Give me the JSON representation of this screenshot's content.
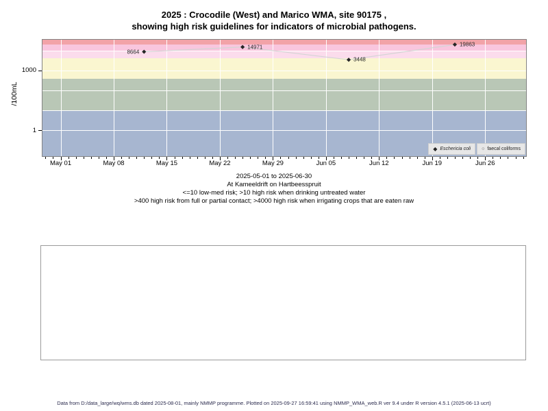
{
  "title": {
    "line1": "2025 : Crocodile (West) and Marico WMA, site 90175 ,",
    "line2": "showing high risk guidelines for indicators of microbial pathogens."
  },
  "y_axis": {
    "label": "/100mL",
    "tick_labels": [
      {
        "value": 1000,
        "label": "1000"
      },
      {
        "value": 1,
        "label": "1"
      }
    ]
  },
  "x_axis": {
    "tick_labels": [
      {
        "date": "2025-05-01",
        "label": "May 01"
      },
      {
        "date": "2025-05-08",
        "label": "May 08"
      },
      {
        "date": "2025-05-15",
        "label": "May 15"
      },
      {
        "date": "2025-05-22",
        "label": "May 22"
      },
      {
        "date": "2025-05-29",
        "label": "May 29"
      },
      {
        "date": "2025-06-05",
        "label": "Jun 05"
      },
      {
        "date": "2025-06-12",
        "label": "Jun 12"
      },
      {
        "date": "2025-06-19",
        "label": "Jun 19"
      },
      {
        "date": "2025-06-26",
        "label": "Jun 26"
      }
    ]
  },
  "chart_data": {
    "type": "line",
    "y_scale": "log10",
    "x_range": [
      "2025-05-01",
      "2025-06-30"
    ],
    "grid": true,
    "grid_color": "#ffffff",
    "y_gridlines": [
      1,
      10,
      100,
      1000,
      10000
    ],
    "series": [
      {
        "name": "Eschericia coli",
        "marker": "filled-diamond",
        "line_color": "#d4d4d4",
        "marker_color": "#262626",
        "points": [
          {
            "date": "2025-05-12",
            "value": 8664,
            "label": "8664",
            "label_side": "left"
          },
          {
            "date": "2025-05-25",
            "value": 14971,
            "label": "14971",
            "label_side": "right"
          },
          {
            "date": "2025-06-08",
            "value": 3448,
            "label": "3448",
            "label_side": "right"
          },
          {
            "date": "2025-06-22",
            "value": 19863,
            "label": "19863",
            "label_side": "right"
          }
        ]
      },
      {
        "name": "faecal coliforms",
        "marker": "open-circle",
        "line_color": "#d4d4d4",
        "marker_color": "#444444",
        "points": []
      }
    ],
    "guideline_bands": [
      {
        "from": null,
        "to": 10,
        "color": "#a7b6d0"
      },
      {
        "from": 10,
        "to": 400,
        "color": "#b9c7b6"
      },
      {
        "from": 400,
        "to": 4000,
        "color": "#faf6d0"
      },
      {
        "from": 4000,
        "to": 10000,
        "color": "#fbdcec"
      },
      {
        "from": 10000,
        "to": 20000,
        "color": "#f9c6de"
      },
      {
        "from": 20000,
        "to": null,
        "color": "#f2a3a8"
      }
    ]
  },
  "legend": {
    "items": [
      {
        "label": "Eschericia coli",
        "marker": "filled-diamond",
        "italic": true
      },
      {
        "label": "faecal coliforms",
        "marker": "open-circle",
        "italic": false
      }
    ]
  },
  "subtitle": {
    "lines": [
      "2025-05-01 to 2025-06-30",
      "At Kameeldrift on Hartbeesspruit",
      "<=10 low-med risk; >10 high risk when drinking untreated water",
      ">400 high risk from full or partial contact; >4000 high risk when irrigating crops that are eaten raw"
    ]
  },
  "footer": {
    "text": "Data from D:/data_large/wq/wms.db dated 2025-08-01, mainly NMMP programme. Plotted on 2025-09-27 16:59:41 using NMMP_WMA_web.R ver 9.4 under R version 4.5.1 (2025-06-13 ucrt)"
  }
}
